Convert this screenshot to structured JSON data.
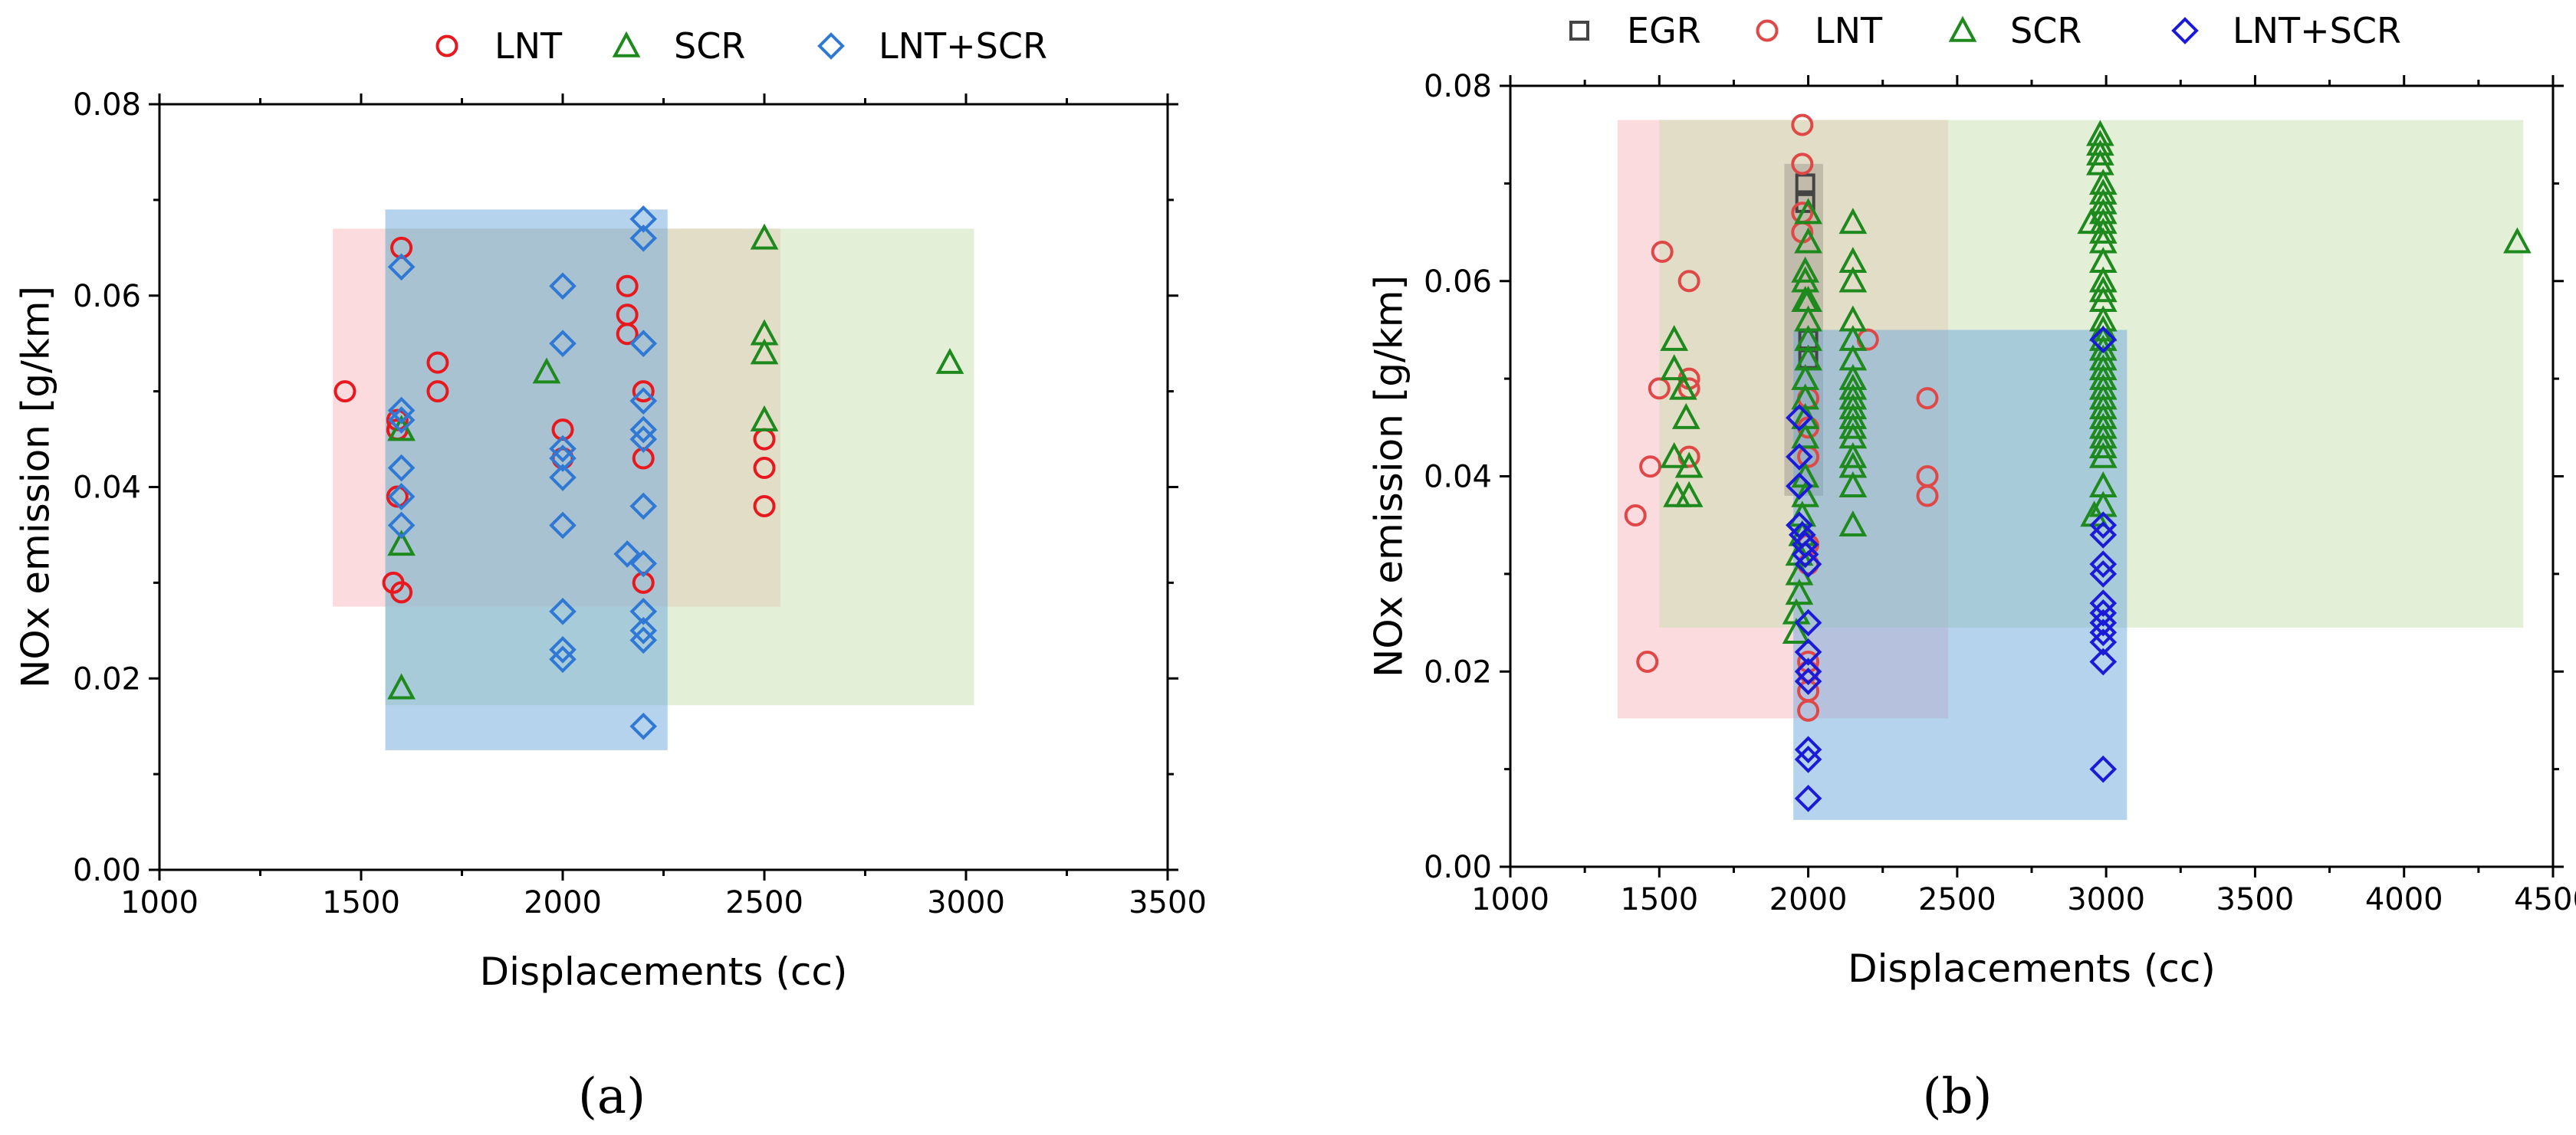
{
  "panels": [
    {
      "id": "a",
      "panel_label": "(a)",
      "colors": {
        "LNT": "#e8191e",
        "SCR": "#1e8a1e",
        "LNT+SCR": "#2f79d4"
      },
      "chart_data": {
        "type": "scatter",
        "xlabel": "Displacements (cc)",
        "ylabel": "NOx emission [g/km]",
        "xlim": [
          1000,
          3500
        ],
        "ylim": [
          0,
          0.08
        ],
        "x_ticks": [
          1000,
          1500,
          2000,
          2500,
          3000,
          3500
        ],
        "y_ticks": [
          0.0,
          0.02,
          0.04,
          0.06,
          0.08
        ],
        "legend": [
          "LNT",
          "SCR",
          "LNT+SCR"
        ],
        "ranges": [
          {
            "series": "LNT",
            "x": [
              1430,
              2540
            ],
            "y": [
              0.0275,
              0.067
            ],
            "color": "#f9b8c0"
          },
          {
            "series": "SCR",
            "x": [
              1560,
              3020
            ],
            "y": [
              0.0172,
              0.067
            ],
            "color": "#c8e0b0"
          },
          {
            "series": "LNT+SCR",
            "x": [
              1560,
              2260
            ],
            "y": [
              0.0125,
              0.069
            ],
            "color": "#6ea8db"
          }
        ],
        "series": [
          {
            "name": "LNT",
            "points": [
              [
                1460,
                0.05
              ],
              [
                1590,
                0.047
              ],
              [
                1590,
                0.046
              ],
              [
                1590,
                0.039
              ],
              [
                1600,
                0.065
              ],
              [
                1580,
                0.03
              ],
              [
                1600,
                0.029
              ],
              [
                1690,
                0.053
              ],
              [
                1690,
                0.05
              ],
              [
                2000,
                0.046
              ],
              [
                2000,
                0.043
              ],
              [
                2160,
                0.061
              ],
              [
                2160,
                0.058
              ],
              [
                2160,
                0.056
              ],
              [
                2200,
                0.05
              ],
              [
                2200,
                0.043
              ],
              [
                2200,
                0.03
              ],
              [
                2500,
                0.045
              ],
              [
                2500,
                0.042
              ],
              [
                2500,
                0.038
              ]
            ]
          },
          {
            "name": "SCR",
            "points": [
              [
                1600,
                0.046
              ],
              [
                1600,
                0.034
              ],
              [
                1600,
                0.019
              ],
              [
                1960,
                0.052
              ],
              [
                2500,
                0.066
              ],
              [
                2500,
                0.056
              ],
              [
                2500,
                0.054
              ],
              [
                2500,
                0.047
              ],
              [
                2960,
                0.053
              ]
            ]
          },
          {
            "name": "LNT+SCR",
            "points": [
              [
                1600,
                0.063
              ],
              [
                1600,
                0.048
              ],
              [
                1600,
                0.047
              ],
              [
                1600,
                0.042
              ],
              [
                1600,
                0.039
              ],
              [
                1600,
                0.036
              ],
              [
                2000,
                0.061
              ],
              [
                2000,
                0.055
              ],
              [
                2000,
                0.044
              ],
              [
                2000,
                0.043
              ],
              [
                2000,
                0.041
              ],
              [
                2000,
                0.036
              ],
              [
                2000,
                0.027
              ],
              [
                2000,
                0.023
              ],
              [
                2000,
                0.022
              ],
              [
                2160,
                0.033
              ],
              [
                2200,
                0.068
              ],
              [
                2200,
                0.066
              ],
              [
                2200,
                0.055
              ],
              [
                2200,
                0.049
              ],
              [
                2200,
                0.046
              ],
              [
                2200,
                0.045
              ],
              [
                2200,
                0.038
              ],
              [
                2200,
                0.032
              ],
              [
                2200,
                0.027
              ],
              [
                2200,
                0.025
              ],
              [
                2200,
                0.024
              ],
              [
                2200,
                0.015
              ]
            ]
          }
        ]
      }
    },
    {
      "id": "b",
      "panel_label": "(b)",
      "colors": {
        "EGR": "#444444",
        "LNT": "#e04848",
        "SCR": "#1e8a1e",
        "LNT+SCR": "#1a1ad8"
      },
      "chart_data": {
        "type": "scatter",
        "xlabel": "Displacements (cc)",
        "ylabel": "NOx emission [g/km]",
        "xlim": [
          1000,
          4500
        ],
        "ylim": [
          0,
          0.08
        ],
        "x_ticks": [
          1000,
          1500,
          2000,
          2500,
          3000,
          3500,
          4000,
          4500
        ],
        "y_ticks": [
          0.0,
          0.02,
          0.04,
          0.06,
          0.08
        ],
        "legend": [
          "EGR",
          "LNT",
          "SCR",
          "LNT+SCR"
        ],
        "ranges": [
          {
            "series": "LNT",
            "x": [
              1360,
              2470
            ],
            "y": [
              0.0152,
              0.0765
            ],
            "color": "#f9b8c0"
          },
          {
            "series": "SCR",
            "x": [
              1500,
              4400
            ],
            "y": [
              0.0245,
              0.0765
            ],
            "color": "#c8e0b0"
          },
          {
            "series": "EGR",
            "x": [
              1920,
              2050
            ],
            "y": [
              0.038,
              0.072
            ],
            "color": "#a09a90"
          },
          {
            "series": "LNT+SCR",
            "x": [
              1950,
              3070
            ],
            "y": [
              0.0048,
              0.055
            ],
            "color": "#6ea8db"
          }
        ],
        "series": [
          {
            "name": "EGR",
            "points": [
              [
                1990,
                0.07
              ],
              [
                1990,
                0.068
              ],
              [
                2000,
                0.054
              ],
              [
                2000,
                0.052
              ]
            ]
          },
          {
            "name": "LNT",
            "points": [
              [
                1420,
                0.036
              ],
              [
                1460,
                0.021
              ],
              [
                1470,
                0.041
              ],
              [
                1500,
                0.049
              ],
              [
                1510,
                0.063
              ],
              [
                1600,
                0.06
              ],
              [
                1600,
                0.05
              ],
              [
                1600,
                0.049
              ],
              [
                1600,
                0.042
              ],
              [
                1980,
                0.076
              ],
              [
                1980,
                0.072
              ],
              [
                1980,
                0.067
              ],
              [
                1980,
                0.065
              ],
              [
                2000,
                0.048
              ],
              [
                2000,
                0.045
              ],
              [
                2000,
                0.042
              ],
              [
                2000,
                0.033
              ],
              [
                2000,
                0.031
              ],
              [
                2000,
                0.021
              ],
              [
                2000,
                0.02
              ],
              [
                2000,
                0.018
              ],
              [
                2000,
                0.016
              ],
              [
                2200,
                0.054
              ],
              [
                2400,
                0.048
              ],
              [
                2400,
                0.04
              ],
              [
                2400,
                0.038
              ]
            ]
          },
          {
            "name": "SCR",
            "points": [
              [
                1550,
                0.054
              ],
              [
                1550,
                0.051
              ],
              [
                1580,
                0.049
              ],
              [
                1590,
                0.046
              ],
              [
                1550,
                0.042
              ],
              [
                1560,
                0.038
              ],
              [
                1600,
                0.038
              ],
              [
                1600,
                0.041
              ],
              [
                1960,
                0.024
              ],
              [
                1960,
                0.026
              ],
              [
                1970,
                0.028
              ],
              [
                1970,
                0.03
              ],
              [
                1970,
                0.032
              ],
              [
                1980,
                0.034
              ],
              [
                1980,
                0.036
              ],
              [
                1990,
                0.038
              ],
              [
                1990,
                0.04
              ],
              [
                1990,
                0.044
              ],
              [
                1990,
                0.046
              ],
              [
                1990,
                0.048
              ],
              [
                1990,
                0.05
              ],
              [
                1990,
                0.058
              ],
              [
                1990,
                0.06
              ],
              [
                1990,
                0.061
              ],
              [
                2000,
                0.067
              ],
              [
                2000,
                0.064
              ],
              [
                2000,
                0.058
              ],
              [
                2000,
                0.056
              ],
              [
                2000,
                0.054
              ],
              [
                2000,
                0.052
              ],
              [
                2150,
                0.066
              ],
              [
                2150,
                0.062
              ],
              [
                2150,
                0.06
              ],
              [
                2150,
                0.056
              ],
              [
                2150,
                0.054
              ],
              [
                2150,
                0.052
              ],
              [
                2150,
                0.05
              ],
              [
                2150,
                0.049
              ],
              [
                2150,
                0.048
              ],
              [
                2150,
                0.047
              ],
              [
                2150,
                0.046
              ],
              [
                2150,
                0.045
              ],
              [
                2150,
                0.044
              ],
              [
                2150,
                0.042
              ],
              [
                2150,
                0.041
              ],
              [
                2150,
                0.039
              ],
              [
                2150,
                0.035
              ],
              [
                2950,
                0.066
              ],
              [
                2960,
                0.036
              ],
              [
                2980,
                0.075
              ],
              [
                2980,
                0.074
              ],
              [
                2980,
                0.073
              ],
              [
                2980,
                0.072
              ],
              [
                2990,
                0.07
              ],
              [
                2990,
                0.069
              ],
              [
                2990,
                0.068
              ],
              [
                2990,
                0.067
              ],
              [
                2990,
                0.066
              ],
              [
                2990,
                0.065
              ],
              [
                2990,
                0.064
              ],
              [
                2990,
                0.062
              ],
              [
                2990,
                0.06
              ],
              [
                2990,
                0.059
              ],
              [
                2990,
                0.058
              ],
              [
                2990,
                0.056
              ],
              [
                2990,
                0.055
              ],
              [
                2990,
                0.054
              ],
              [
                2990,
                0.053
              ],
              [
                2990,
                0.052
              ],
              [
                2990,
                0.051
              ],
              [
                2990,
                0.05
              ],
              [
                2990,
                0.049
              ],
              [
                2990,
                0.048
              ],
              [
                2990,
                0.047
              ],
              [
                2990,
                0.046
              ],
              [
                2990,
                0.045
              ],
              [
                2990,
                0.044
              ],
              [
                2990,
                0.043
              ],
              [
                2990,
                0.042
              ],
              [
                2990,
                0.039
              ],
              [
                2990,
                0.037
              ],
              [
                4380,
                0.064
              ]
            ]
          },
          {
            "name": "LNT+SCR",
            "points": [
              [
                1970,
                0.046
              ],
              [
                1970,
                0.042
              ],
              [
                1970,
                0.039
              ],
              [
                1970,
                0.035
              ],
              [
                1980,
                0.034
              ],
              [
                1990,
                0.033
              ],
              [
                1990,
                0.032
              ],
              [
                2000,
                0.031
              ],
              [
                2000,
                0.025
              ],
              [
                2000,
                0.022
              ],
              [
                2000,
                0.02
              ],
              [
                2000,
                0.019
              ],
              [
                2000,
                0.012
              ],
              [
                2000,
                0.011
              ],
              [
                2000,
                0.007
              ],
              [
                2990,
                0.054
              ],
              [
                2990,
                0.035
              ],
              [
                2990,
                0.034
              ],
              [
                2990,
                0.031
              ],
              [
                2990,
                0.03
              ],
              [
                2990,
                0.027
              ],
              [
                2990,
                0.026
              ],
              [
                2990,
                0.025
              ],
              [
                2990,
                0.024
              ],
              [
                2990,
                0.023
              ],
              [
                2990,
                0.021
              ],
              [
                2990,
                0.01
              ]
            ]
          }
        ]
      }
    }
  ]
}
